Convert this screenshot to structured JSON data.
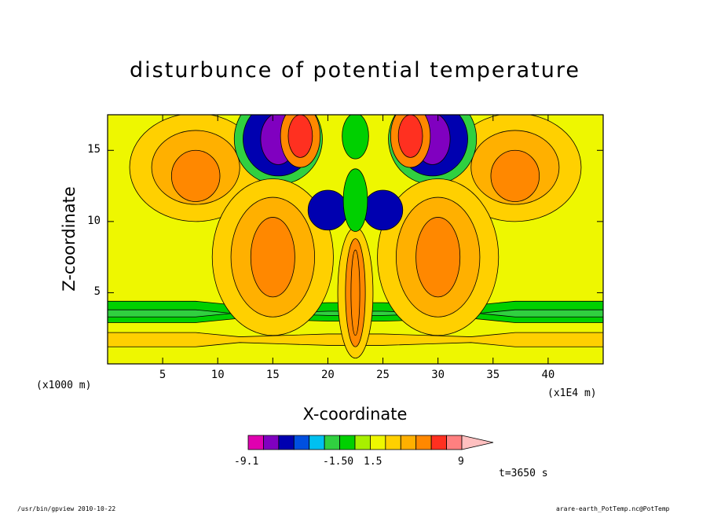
{
  "chart_data": {
    "type": "heatmap",
    "title": "disturbunce of potential temperature",
    "xlabel": "X-coordinate",
    "ylabel": "Z-coordinate",
    "x_unit_left": "(x1000 m)",
    "x_unit_right": "(x1E4 m)",
    "xlim": [
      0,
      45
    ],
    "ylim": [
      0,
      17.5
    ],
    "x_ticks": [
      "5",
      "10",
      "15",
      "20",
      "25",
      "30",
      "35",
      "40"
    ],
    "x_tick_values": [
      5,
      10,
      15,
      20,
      25,
      30,
      35,
      40
    ],
    "y_ticks": [
      "5",
      "10",
      "15"
    ],
    "y_tick_values": [
      5,
      10,
      15
    ],
    "background_color": "#eef700",
    "colorbar": {
      "labels": [
        "-9.1",
        "-1.50",
        "1.5",
        "9"
      ],
      "colors": [
        "#e000b0",
        "#8000c0",
        "#0000b0",
        "#0050e0",
        "#00c0f0",
        "#30d040",
        "#00d000",
        "#a8f000",
        "#eef700",
        "#ffd000",
        "#ffb000",
        "#ff8800",
        "#ff3020",
        "#ff8080",
        "#ffc0c0"
      ]
    },
    "features": [
      {
        "x": 8,
        "z": 13.8,
        "value": 1.0
      },
      {
        "x": 37,
        "z": 13.8,
        "value": 1.0
      },
      {
        "x": 15.5,
        "z": 15.8,
        "value": -9
      },
      {
        "x": 29.5,
        "z": 15.8,
        "value": -9
      },
      {
        "x": 17.5,
        "z": 16,
        "value": 9
      },
      {
        "x": 27.5,
        "z": 16,
        "value": 9
      },
      {
        "x": 15,
        "z": 7.5,
        "value": 1.0
      },
      {
        "x": 30,
        "z": 7.5,
        "value": 1.0
      },
      {
        "x": 22.5,
        "z": 5,
        "value": 2
      }
    ]
  },
  "annotations": {
    "time": "t=3650 s",
    "footer_left": "/usr/bin/gpview   2010-10-22",
    "footer_right": "arare-earth_PotTemp.nc@PotTemp"
  }
}
